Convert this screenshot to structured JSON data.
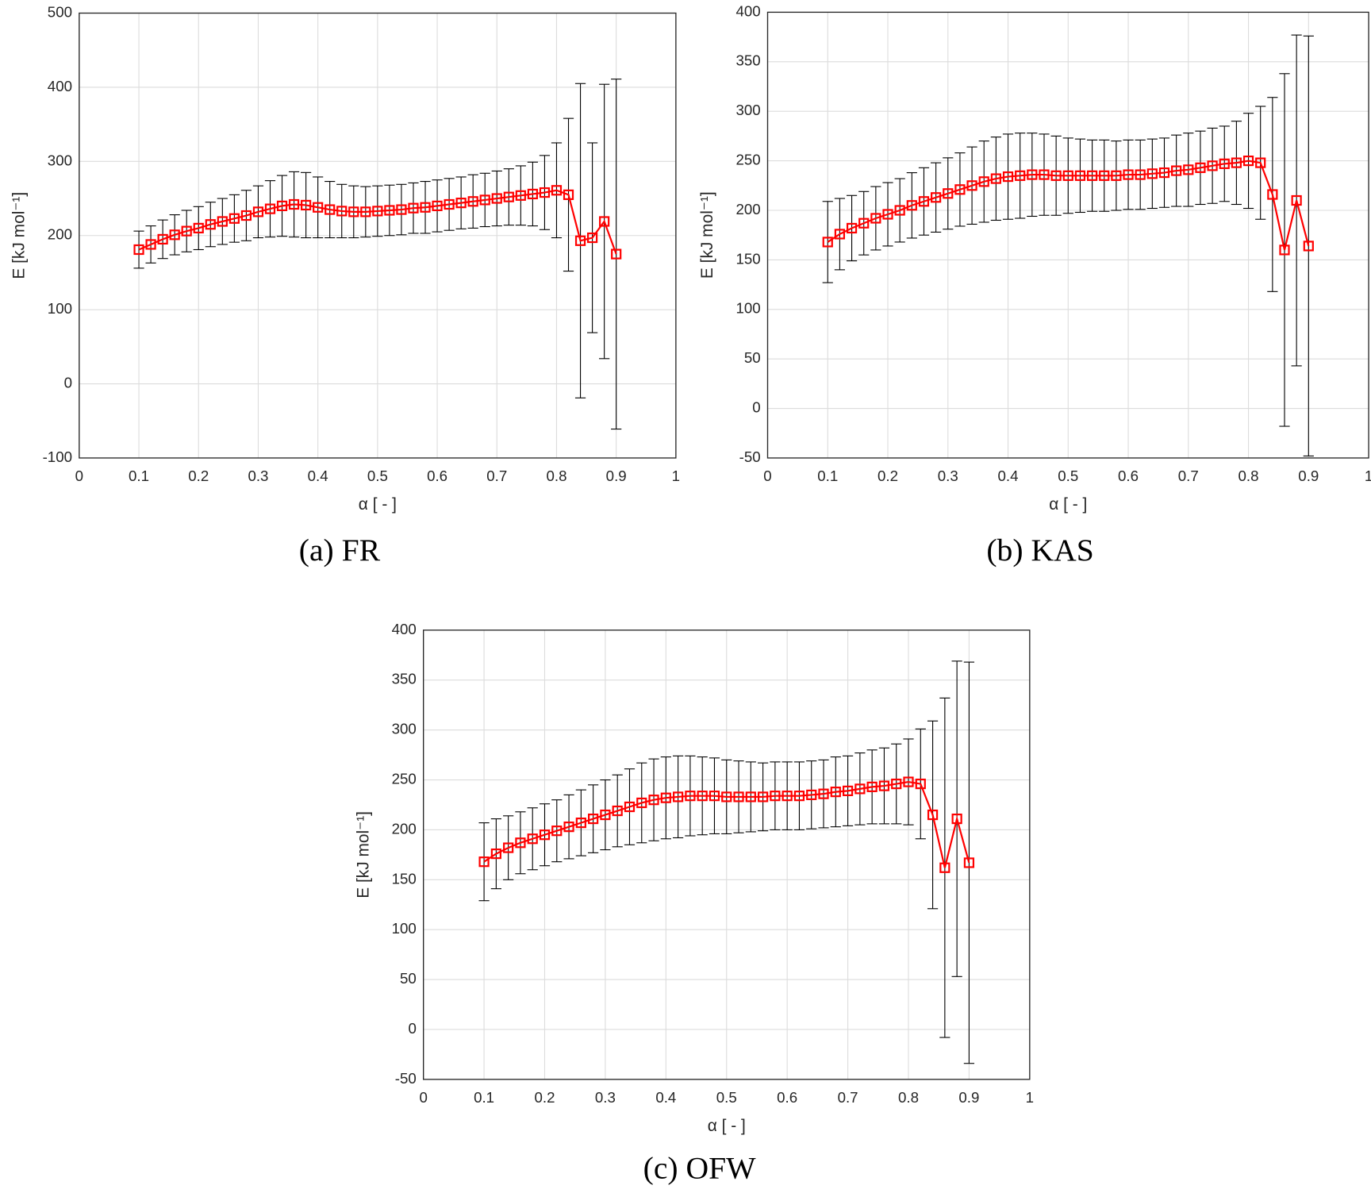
{
  "chart_data": [
    {
      "type": "line",
      "caption": "(a) FR",
      "xlabel": "α [ - ]",
      "ylabel": "E [kJ mol⁻¹]",
      "xlim": [
        0,
        1
      ],
      "xticks": [
        0,
        0.1,
        0.2,
        0.3,
        0.4,
        0.5,
        0.6,
        0.7,
        0.8,
        0.9,
        1
      ],
      "ylim": [
        -100,
        500
      ],
      "yticks": [
        -100,
        0,
        100,
        200,
        300,
        400,
        500
      ],
      "grid": true,
      "color": "#ff0000",
      "error_color": "#000000",
      "x": [
        0.1,
        0.12,
        0.14,
        0.16,
        0.18,
        0.2,
        0.22,
        0.24,
        0.26,
        0.28,
        0.3,
        0.32,
        0.34,
        0.36,
        0.38,
        0.4,
        0.42,
        0.44,
        0.46,
        0.48,
        0.5,
        0.52,
        0.54,
        0.56,
        0.58,
        0.6,
        0.62,
        0.64,
        0.66,
        0.68,
        0.7,
        0.72,
        0.74,
        0.76,
        0.78,
        0.8,
        0.82,
        0.84,
        0.86,
        0.88,
        0.9
      ],
      "values": [
        181,
        188,
        195,
        201,
        206,
        210,
        215,
        219,
        223,
        227,
        232,
        236,
        240,
        242,
        241,
        238,
        235,
        233,
        232,
        232,
        233,
        234,
        235,
        237,
        238,
        240,
        242,
        244,
        246,
        248,
        250,
        252,
        254,
        256,
        258,
        261,
        255,
        193,
        197,
        219,
        175
      ],
      "errors": [
        25,
        25,
        26,
        27,
        28,
        29,
        30,
        31,
        32,
        34,
        35,
        38,
        41,
        44,
        44,
        41,
        38,
        36,
        35,
        34,
        34,
        34,
        34,
        34,
        35,
        35,
        35,
        35,
        36,
        36,
        37,
        38,
        40,
        43,
        50,
        64,
        103,
        212,
        128,
        185,
        236
      ]
    },
    {
      "type": "line",
      "caption": "(b) KAS",
      "xlabel": "α [ - ]",
      "ylabel": "E [kJ mol⁻¹]",
      "xlim": [
        0,
        1
      ],
      "xticks": [
        0,
        0.1,
        0.2,
        0.3,
        0.4,
        0.5,
        0.6,
        0.7,
        0.8,
        0.9,
        1
      ],
      "ylim": [
        -50,
        400
      ],
      "yticks": [
        -50,
        0,
        50,
        100,
        150,
        200,
        250,
        300,
        350,
        400
      ],
      "grid": true,
      "color": "#ff0000",
      "error_color": "#000000",
      "x": [
        0.1,
        0.12,
        0.14,
        0.16,
        0.18,
        0.2,
        0.22,
        0.24,
        0.26,
        0.28,
        0.3,
        0.32,
        0.34,
        0.36,
        0.38,
        0.4,
        0.42,
        0.44,
        0.46,
        0.48,
        0.5,
        0.52,
        0.54,
        0.56,
        0.58,
        0.6,
        0.62,
        0.64,
        0.66,
        0.68,
        0.7,
        0.72,
        0.74,
        0.76,
        0.78,
        0.8,
        0.82,
        0.84,
        0.86,
        0.88,
        0.9
      ],
      "values": [
        168,
        176,
        182,
        187,
        192,
        196,
        200,
        205,
        209,
        213,
        217,
        221,
        225,
        229,
        232,
        234,
        235,
        236,
        236,
        235,
        235,
        235,
        235,
        235,
        235,
        236,
        236,
        237,
        238,
        240,
        241,
        243,
        245,
        247,
        248,
        250,
        248,
        216,
        160,
        210,
        164
      ],
      "errors": [
        41,
        36,
        33,
        32,
        32,
        32,
        32,
        33,
        34,
        35,
        36,
        37,
        39,
        41,
        42,
        43,
        43,
        42,
        41,
        40,
        38,
        37,
        36,
        36,
        35,
        35,
        35,
        35,
        35,
        36,
        37,
        37,
        38,
        38,
        42,
        48,
        57,
        98,
        178,
        167,
        212
      ]
    },
    {
      "type": "line",
      "caption": "(c) OFW",
      "xlabel": "α [ - ]",
      "ylabel": "E [kJ mol⁻¹]",
      "xlim": [
        0,
        1
      ],
      "xticks": [
        0,
        0.1,
        0.2,
        0.3,
        0.4,
        0.5,
        0.6,
        0.7,
        0.8,
        0.9,
        1
      ],
      "ylim": [
        -50,
        400
      ],
      "yticks": [
        -50,
        0,
        50,
        100,
        150,
        200,
        250,
        300,
        350,
        400
      ],
      "grid": true,
      "color": "#ff0000",
      "error_color": "#000000",
      "x": [
        0.1,
        0.12,
        0.14,
        0.16,
        0.18,
        0.2,
        0.22,
        0.24,
        0.26,
        0.28,
        0.3,
        0.32,
        0.34,
        0.36,
        0.38,
        0.4,
        0.42,
        0.44,
        0.46,
        0.48,
        0.5,
        0.52,
        0.54,
        0.56,
        0.58,
        0.6,
        0.62,
        0.64,
        0.66,
        0.68,
        0.7,
        0.72,
        0.74,
        0.76,
        0.78,
        0.8,
        0.82,
        0.84,
        0.86,
        0.88,
        0.9
      ],
      "values": [
        168,
        176,
        182,
        187,
        191,
        195,
        199,
        203,
        207,
        211,
        215,
        219,
        223,
        227,
        230,
        232,
        233,
        234,
        234,
        234,
        233,
        233,
        233,
        233,
        234,
        234,
        234,
        235,
        236,
        238,
        239,
        241,
        243,
        244,
        246,
        248,
        246,
        215,
        162,
        211,
        167
      ],
      "errors": [
        39,
        35,
        32,
        31,
        31,
        31,
        31,
        32,
        33,
        34,
        35,
        36,
        38,
        40,
        41,
        41,
        41,
        40,
        39,
        38,
        37,
        36,
        35,
        34,
        34,
        34,
        34,
        34,
        34,
        35,
        35,
        36,
        37,
        38,
        40,
        43,
        55,
        94,
        170,
        158,
        201
      ]
    }
  ]
}
